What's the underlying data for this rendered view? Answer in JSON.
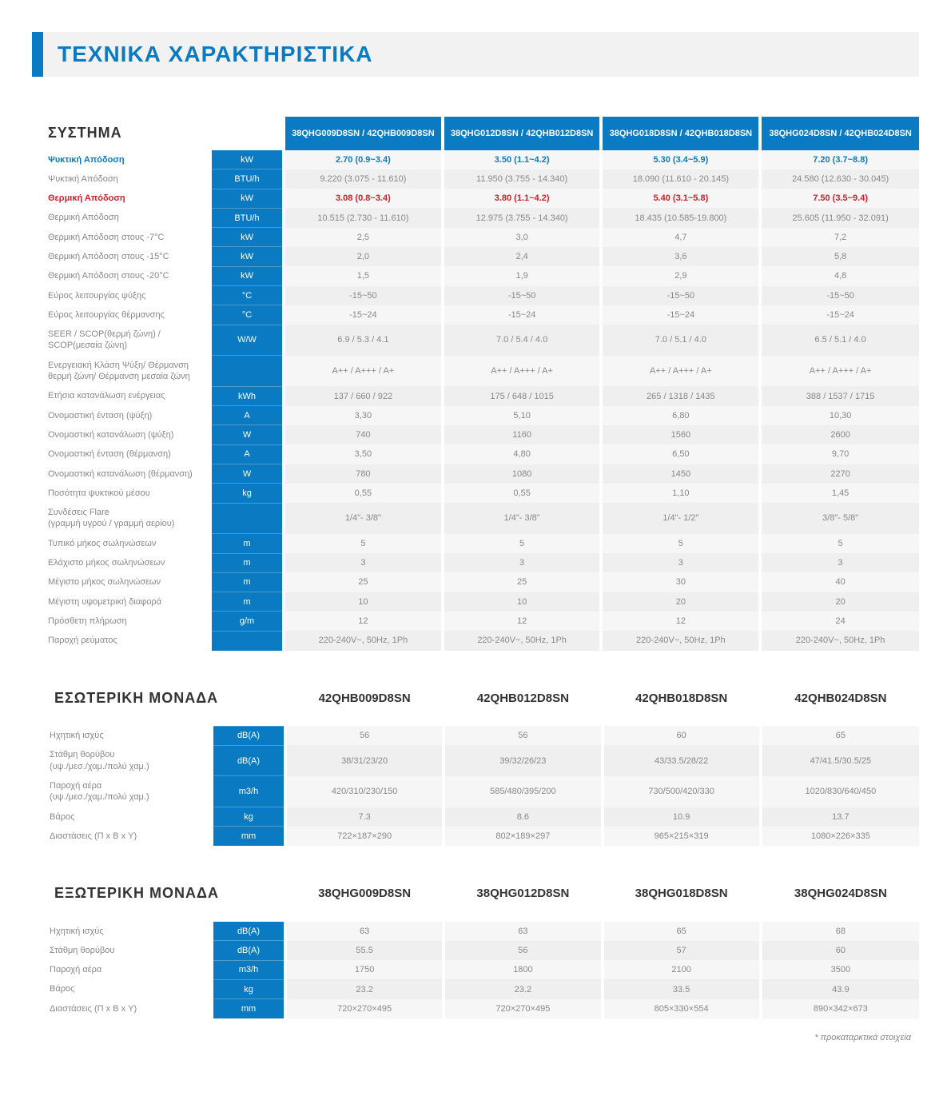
{
  "page_title": "ΤΕΧΝΙΚΑ ΧΑΡΑΚΤΗΡΙΣΤΙΚΑ",
  "colors": {
    "brand_blue": "#0a7bc2",
    "accent_red": "#d21f2a",
    "row_odd_bg": "#f6f6f6",
    "row_even_bg": "#efefef",
    "header_bar_bg": "#f2f2f2",
    "text_muted": "#888888"
  },
  "footnote": "* προκαταρκτικά στοιχεία",
  "system": {
    "heading": "ΣΥΣΤΗΜΑ",
    "model_headers": [
      "38QHG009D8SN / 42QHB009D8SN",
      "38QHG012D8SN / 42QHB012D8SN",
      "38QHG018D8SN / 42QHB018D8SN",
      "38QHG024D8SN / 42QHB024D8SN"
    ],
    "rows": [
      {
        "label": "Ψυκτική Απόδοση",
        "unit": "kW",
        "values": [
          "2.70 (0.9~3.4)",
          "3.50 (1.1~4.2)",
          "5.30 (3.4~5.9)",
          "7.20 (3.7~8.8)"
        ],
        "highlight": "blue"
      },
      {
        "label": "Ψυκτική Απόδοση",
        "unit": "BTU/h",
        "values": [
          "9.220 (3.075 - 11.610)",
          "11.950 (3.755 - 14.340)",
          "18.090 (11.610 - 20.145)",
          "24.580 (12.630 - 30.045)"
        ]
      },
      {
        "label": "Θερμική Απόδοση",
        "unit": "kW",
        "values": [
          "3.08 (0.8~3.4)",
          "3.80 (1.1~4.2)",
          "5.40 (3.1~5.8)",
          "7.50 (3.5~9.4)"
        ],
        "highlight": "red"
      },
      {
        "label": "Θερμική Απόδοση",
        "unit": "BTU/h",
        "values": [
          "10.515 (2.730 - 11.610)",
          "12.975 (3.755 - 14.340)",
          "18.435 (10.585-19.800)",
          "25.605 (11.950 - 32.091)"
        ]
      },
      {
        "label": "Θερμική Απόδοση στους -7°C",
        "unit": "kW",
        "values": [
          "2,5",
          "3,0",
          "4,7",
          "7,2"
        ]
      },
      {
        "label": "Θερμική Απόδοση στους -15°C",
        "unit": "kW",
        "values": [
          "2,0",
          "2,4",
          "3,6",
          "5,8"
        ]
      },
      {
        "label": "Θερμική Απόδοση στους -20°C",
        "unit": "kW",
        "values": [
          "1,5",
          "1,9",
          "2,9",
          "4,8"
        ]
      },
      {
        "label": "Εύρος λειτουργίας ψύξης",
        "unit": "°C",
        "values": [
          "-15~50",
          "-15~50",
          "-15~50",
          "-15~50"
        ]
      },
      {
        "label": "Εύρος λειτουργίας θέρμανσης",
        "unit": "°C",
        "values": [
          "-15~24",
          "-15~24",
          "-15~24",
          "-15~24"
        ]
      },
      {
        "label": "SEER / SCOP(θερμή ζώνη) / SCOP(μεσαία ζώνη)",
        "unit": "W/W",
        "values": [
          "6.9 / 5.3 / 4.1",
          "7.0 / 5.4 / 4.0",
          "7.0 / 5.1 / 4.0",
          "6.5 / 5.1 / 4.0"
        ]
      },
      {
        "label": "Ενεργειακή Κλάση Ψύξη/ Θέρμανση θερμή ζώνη/ Θέρμανση μεσαία ζώνη",
        "unit": "",
        "values": [
          "A++ / A+++ / A+",
          "A++ / A+++ / A+",
          "A++ / A+++ / A+",
          "A++ / A+++ / A+"
        ]
      },
      {
        "label": "Ετήσια κατανάλωση ενέργειας",
        "unit": "kWh",
        "values": [
          "137 / 660 / 922",
          "175 / 648 / 1015",
          "265 / 1318 / 1435",
          "388 / 1537 / 1715"
        ]
      },
      {
        "label": "Ονομαστική ένταση (ψύξη)",
        "unit": "A",
        "values": [
          "3,30",
          "5,10",
          "6,80",
          "10,30"
        ]
      },
      {
        "label": "Ονομαστική κατανάλωση (ψύξη)",
        "unit": "W",
        "values": [
          "740",
          "1160",
          "1560",
          "2600"
        ]
      },
      {
        "label": "Ονομαστική ένταση (θέρμανση)",
        "unit": "A",
        "values": [
          "3,50",
          "4,80",
          "6,50",
          "9,70"
        ]
      },
      {
        "label": "Ονομαστική κατανάλωση (θέρμανση)",
        "unit": "W",
        "values": [
          "780",
          "1080",
          "1450",
          "2270"
        ]
      },
      {
        "label": "Ποσότητα ψυκτικού μέσου",
        "unit": "kg",
        "values": [
          "0,55",
          "0,55",
          "1,10",
          "1,45"
        ]
      },
      {
        "label": "Συνδέσεις Flare\n(γραμμή υγρού / γραμμή αερίου)",
        "unit": "",
        "values": [
          "1/4\"- 3/8\"",
          "1/4\"- 3/8\"",
          "1/4\"- 1/2\"",
          "3/8\"- 5/8\""
        ]
      },
      {
        "label": "Τυπικό μήκος σωληνώσεων",
        "unit": "m",
        "values": [
          "5",
          "5",
          "5",
          "5"
        ]
      },
      {
        "label": "Ελάχιστο μήκος σωληνώσεων",
        "unit": "m",
        "values": [
          "3",
          "3",
          "3",
          "3"
        ]
      },
      {
        "label": "Μέγιστο μήκος σωληνώσεων",
        "unit": "m",
        "values": [
          "25",
          "25",
          "30",
          "40"
        ]
      },
      {
        "label": "Μέγιστη υψομετρική διαφορά",
        "unit": "m",
        "values": [
          "10",
          "10",
          "20",
          "20"
        ]
      },
      {
        "label": "Πρόσθετη πλήρωση",
        "unit": "g/m",
        "values": [
          "12",
          "12",
          "12",
          "24"
        ]
      },
      {
        "label": "Παροχή ρεύματος",
        "unit": "",
        "values": [
          "220-240V~, 50Hz, 1Ph",
          "220-240V~, 50Hz, 1Ph",
          "220-240V~, 50Hz, 1Ph",
          "220-240V~, 50Hz, 1Ph"
        ]
      }
    ]
  },
  "indoor": {
    "heading": "ΕΣΩΤΕΡΙΚΗ ΜΟΝΑΔΑ",
    "model_headers": [
      "42QHB009D8SN",
      "42QHB012D8SN",
      "42QHB018D8SN",
      "42QHB024D8SN"
    ],
    "rows": [
      {
        "label": "Ηχητική ισχύς",
        "unit": "dB(A)",
        "values": [
          "56",
          "56",
          "60",
          "65"
        ]
      },
      {
        "label": "Στάθμη θορύβου\n(υψ./μεσ./χαμ./πολύ χαμ.)",
        "unit": "dB(A)",
        "values": [
          "38/31/23/20",
          "39/32/26/23",
          "43/33.5/28/22",
          "47/41.5/30.5/25"
        ]
      },
      {
        "label": "Παροχή αέρα\n(υψ./μεσ./χαμ./πολύ χαμ.)",
        "unit": "m3/h",
        "values": [
          "420/310/230/150",
          "585/480/395/200",
          "730/500/420/330",
          "1020/830/640/450"
        ]
      },
      {
        "label": "Βάρος",
        "unit": "kg",
        "values": [
          "7.3",
          "8.6",
          "10.9",
          "13.7"
        ]
      },
      {
        "label": "Διαστάσεις (Π x Β x Υ)",
        "unit": "mm",
        "values": [
          "722×187×290",
          "802×189×297",
          "965×215×319",
          "1080×226×335"
        ]
      }
    ]
  },
  "outdoor": {
    "heading": "ΕΞΩΤΕΡΙΚΗ ΜΟΝΑΔΑ",
    "model_headers": [
      "38QHG009D8SN",
      "38QHG012D8SN",
      "38QHG018D8SN",
      "38QHG024D8SN"
    ],
    "rows": [
      {
        "label": "Ηχητική ισχύς",
        "unit": "dB(A)",
        "values": [
          "63",
          "63",
          "65",
          "68"
        ]
      },
      {
        "label": "Στάθμη θορύβου",
        "unit": "dB(A)",
        "values": [
          "55.5",
          "56",
          "57",
          "60"
        ]
      },
      {
        "label": "Παροχή αέρα",
        "unit": "m3/h",
        "values": [
          "1750",
          "1800",
          "2100",
          "3500"
        ]
      },
      {
        "label": "Βάρος",
        "unit": "kg",
        "values": [
          "23.2",
          "23.2",
          "33.5",
          "43.9"
        ]
      },
      {
        "label": "Διαστάσεις (Π x Β x Υ)",
        "unit": "mm",
        "values": [
          "720×270×495",
          "720×270×495",
          "805×330×554",
          "890×342×673"
        ]
      }
    ]
  }
}
